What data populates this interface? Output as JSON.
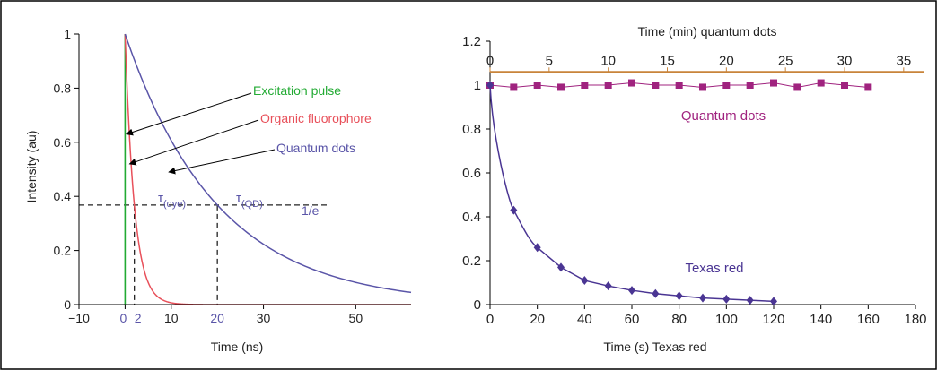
{
  "colors": {
    "excitation": "#22aa33",
    "organic": "#e8505a",
    "qd": "#5a55a8",
    "qd_series": "#a0237f",
    "texas": "#4a3593",
    "top_axis": "#c8843a",
    "dashed": "#222222",
    "frame": "#000000"
  },
  "chart_data": [
    {
      "type": "line",
      "xlabel": "Time (ns)",
      "ylabel": "Intensity (au)",
      "xlim": [
        -10,
        62
      ],
      "ylim": [
        0,
        1
      ],
      "xticks": [
        -10,
        0,
        10,
        30,
        50
      ],
      "xticks_special": [
        {
          "value": 0,
          "label": "0"
        },
        {
          "value": 2,
          "label": "2"
        },
        {
          "value": 20,
          "label": "20"
        }
      ],
      "yticks": [
        0,
        0.2,
        0.4,
        0.6,
        0.8,
        1
      ],
      "xtick_labels": [
        "−10",
        "0",
        "10",
        "30",
        "50"
      ],
      "ytick_labels": [
        "0",
        "0.2",
        "0.4",
        "0.6",
        "0.8",
        "1"
      ],
      "special_tick_labels": [
        "0",
        "2",
        "20"
      ],
      "threshold": {
        "y": 0.3679,
        "label": "1/e"
      },
      "series": [
        {
          "name": "Excitation pulse",
          "kind": "pulse",
          "x": 0,
          "y_range": [
            0,
            1
          ]
        },
        {
          "name": "Organic fluorophore",
          "kind": "exp_decay",
          "start": 0,
          "tau": 2
        },
        {
          "name": "Quantum dots",
          "kind": "exp_decay",
          "start": 0,
          "tau": 20
        }
      ],
      "annotations": [
        {
          "text": "Excitation pulse",
          "points_to": {
            "x": 0.3,
            "y": 0.63
          }
        },
        {
          "text": "Organic fluorophore",
          "points_to": {
            "x": 1.0,
            "y": 0.52
          }
        },
        {
          "text": "Quantum dots",
          "points_to": {
            "x": 9.5,
            "y": 0.49
          }
        }
      ],
      "tau_labels": [
        {
          "greek": "τ",
          "sub": "(dye)",
          "x": 2
        },
        {
          "greek": "τ",
          "sub": "(QD)",
          "x": 20
        }
      ]
    },
    {
      "type": "scatter",
      "xlabel": "Time (s) Texas red",
      "x2label": "Time (min) quantum dots",
      "xlim": [
        0,
        180
      ],
      "x2lim": [
        0,
        36
      ],
      "ylim": [
        0,
        1.2
      ],
      "xticks": [
        0,
        20,
        40,
        60,
        80,
        100,
        120,
        140,
        160,
        180
      ],
      "x2ticks": [
        0,
        5,
        10,
        15,
        20,
        25,
        30,
        35
      ],
      "yticks": [
        0,
        0.2,
        0.4,
        0.6,
        0.8,
        1,
        1.2
      ],
      "xtick_labels": [
        "0",
        "20",
        "40",
        "60",
        "80",
        "100",
        "120",
        "140",
        "160",
        "180"
      ],
      "x2tick_labels": [
        "0",
        "5",
        "10",
        "15",
        "20",
        "25",
        "30",
        "35"
      ],
      "ytick_labels": [
        "0",
        "0.2",
        "0.4",
        "0.6",
        "0.8",
        "1",
        "1.2"
      ],
      "series": [
        {
          "name": "Quantum dots",
          "axis": "top",
          "marker": "square",
          "x": [
            0,
            2,
            4,
            6,
            8,
            10,
            12,
            14,
            16,
            18,
            20,
            22,
            24,
            26,
            28,
            30,
            32
          ],
          "y": [
            1.0,
            0.99,
            1.0,
            0.99,
            1.0,
            1.0,
            1.01,
            1.0,
            1.0,
            0.99,
            1.0,
            1.0,
            1.01,
            0.99,
            1.01,
            1.0,
            0.99
          ]
        },
        {
          "name": "Texas red",
          "axis": "bottom",
          "marker": "diamond",
          "x": [
            0,
            10,
            20,
            30,
            40,
            50,
            60,
            70,
            80,
            90,
            100,
            110,
            120
          ],
          "y": [
            1.0,
            0.43,
            0.26,
            0.17,
            0.11,
            0.085,
            0.065,
            0.05,
            0.04,
            0.03,
            0.025,
            0.02,
            0.015
          ]
        }
      ]
    }
  ]
}
